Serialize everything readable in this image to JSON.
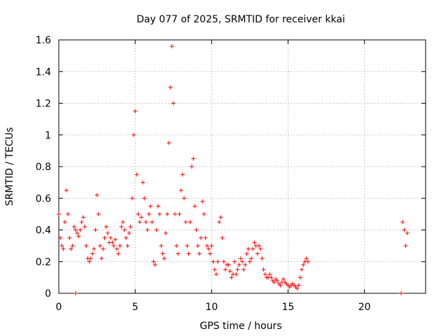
{
  "chart_data": {
    "type": "scatter",
    "title": "Day 077 of 2025, SRMTID for receiver kkai",
    "xlabel": "GPS time / hours",
    "ylabel": "SRMTID / TECUs",
    "xlim": [
      0,
      24
    ],
    "ylim": [
      0,
      1.6
    ],
    "xticks": [
      0,
      5,
      10,
      15,
      20
    ],
    "yticks": [
      0,
      0.2,
      0.4,
      0.6,
      0.8,
      1,
      1.2,
      1.4,
      1.6
    ],
    "xtick_labels": [
      "0",
      "5",
      "10",
      "15",
      "20"
    ],
    "ytick_labels": [
      "0",
      "0.2",
      "0.4",
      "0.6",
      "0.8",
      "1",
      "1.2",
      "1.4",
      "1.6"
    ],
    "grid": true,
    "marker": "+",
    "series": [
      {
        "name": "SRMTID",
        "color": "#ff0000",
        "x": [
          0.0,
          0.1,
          0.2,
          0.3,
          0.4,
          0.5,
          0.6,
          0.7,
          0.8,
          0.9,
          1.0,
          1.1,
          1.2,
          1.3,
          1.4,
          1.5,
          1.6,
          1.7,
          1.8,
          1.9,
          2.0,
          2.1,
          2.2,
          2.3,
          2.4,
          2.5,
          2.6,
          2.7,
          2.8,
          2.9,
          3.0,
          3.1,
          3.2,
          3.3,
          3.4,
          3.5,
          3.6,
          3.7,
          3.8,
          3.9,
          4.0,
          4.1,
          4.2,
          4.3,
          4.4,
          4.5,
          4.6,
          4.7,
          4.8,
          4.9,
          5.0,
          5.1,
          5.2,
          5.3,
          5.4,
          5.5,
          5.6,
          5.7,
          5.8,
          5.9,
          6.0,
          6.1,
          6.2,
          6.3,
          6.4,
          6.5,
          6.6,
          6.7,
          6.8,
          6.9,
          7.0,
          7.1,
          7.2,
          7.3,
          7.4,
          7.5,
          7.6,
          7.7,
          7.8,
          7.9,
          8.0,
          8.1,
          8.2,
          8.3,
          8.4,
          8.5,
          8.6,
          8.7,
          8.8,
          8.9,
          9.0,
          9.1,
          9.2,
          9.3,
          9.4,
          9.5,
          9.6,
          9.7,
          9.8,
          9.9,
          10.0,
          10.1,
          10.2,
          10.3,
          10.4,
          10.5,
          10.6,
          10.7,
          10.8,
          10.9,
          11.0,
          11.1,
          11.2,
          11.3,
          11.4,
          11.5,
          11.6,
          11.7,
          11.8,
          11.9,
          12.0,
          12.1,
          12.2,
          12.3,
          12.4,
          12.5,
          12.6,
          12.7,
          12.8,
          12.9,
          13.0,
          13.1,
          13.2,
          13.3,
          13.4,
          13.5,
          13.6,
          13.7,
          13.8,
          13.9,
          14.0,
          14.1,
          14.2,
          14.3,
          14.4,
          14.5,
          14.6,
          14.7,
          14.8,
          14.9,
          15.0,
          15.1,
          15.2,
          15.3,
          15.4,
          15.5,
          15.6,
          15.7,
          15.8,
          15.9,
          16.0,
          16.1,
          16.2,
          16.3,
          1.1,
          22.4,
          22.5,
          22.6,
          22.7,
          22.8
        ],
        "y": [
          0.5,
          0.35,
          0.3,
          0.28,
          0.45,
          0.65,
          0.5,
          0.35,
          0.28,
          0.3,
          0.42,
          0.4,
          0.38,
          0.36,
          0.4,
          0.45,
          0.48,
          0.42,
          0.3,
          0.22,
          0.2,
          0.22,
          0.25,
          0.28,
          0.4,
          0.62,
          0.5,
          0.3,
          0.22,
          0.28,
          0.35,
          0.42,
          0.38,
          0.32,
          0.35,
          0.32,
          0.3,
          0.34,
          0.28,
          0.25,
          0.3,
          0.42,
          0.45,
          0.4,
          0.35,
          0.3,
          0.38,
          0.42,
          0.6,
          1.0,
          1.15,
          0.75,
          0.5,
          0.45,
          0.48,
          0.7,
          0.6,
          0.45,
          0.4,
          0.5,
          0.55,
          0.45,
          0.2,
          0.18,
          0.4,
          0.55,
          0.5,
          0.3,
          0.25,
          0.22,
          0.38,
          0.5,
          0.95,
          1.3,
          1.56,
          1.2,
          0.5,
          0.3,
          0.25,
          0.5,
          0.65,
          0.75,
          0.6,
          0.45,
          0.3,
          0.25,
          0.45,
          0.8,
          0.85,
          0.55,
          0.4,
          0.3,
          0.25,
          0.35,
          0.58,
          0.5,
          0.35,
          0.3,
          0.28,
          0.25,
          0.3,
          0.2,
          0.15,
          0.12,
          0.2,
          0.45,
          0.48,
          0.35,
          0.2,
          0.15,
          0.18,
          0.18,
          0.14,
          0.1,
          0.12,
          0.2,
          0.12,
          0.15,
          0.18,
          0.22,
          0.2,
          0.15,
          0.18,
          0.25,
          0.28,
          0.2,
          0.22,
          0.28,
          0.32,
          0.3,
          0.25,
          0.3,
          0.28,
          0.22,
          0.15,
          0.12,
          0.1,
          0.1,
          0.12,
          0.1,
          0.08,
          0.07,
          0.09,
          0.08,
          0.06,
          0.05,
          0.07,
          0.09,
          0.07,
          0.06,
          0.05,
          0.04,
          0.05,
          0.06,
          0.05,
          0.04,
          0.03,
          0.05,
          0.1,
          0.15,
          0.18,
          0.2,
          0.22,
          0.2,
          0.0,
          0.0,
          0.45,
          0.4,
          0.3,
          0.38
        ]
      }
    ]
  }
}
